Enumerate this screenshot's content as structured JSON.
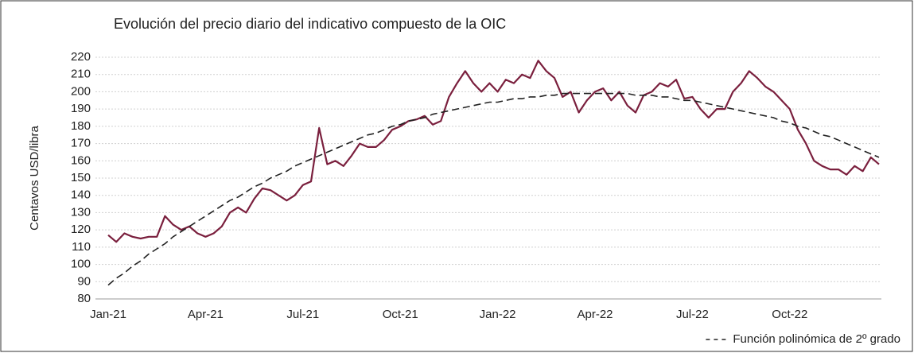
{
  "chart_data": {
    "type": "line",
    "title": "Evolución del precio diario del indicativo compuesto de la OIC",
    "y_label": "Centavos USD/libra",
    "categories": [
      "Jan-21",
      null,
      null,
      null,
      null,
      null,
      null,
      null,
      null,
      null,
      null,
      null,
      "Apr-21",
      null,
      null,
      null,
      null,
      null,
      null,
      null,
      null,
      null,
      null,
      null,
      "Jul-21",
      null,
      null,
      null,
      null,
      null,
      null,
      null,
      null,
      null,
      null,
      null,
      "Oct-21",
      null,
      null,
      null,
      null,
      null,
      null,
      null,
      null,
      null,
      null,
      null,
      "Jan-22",
      null,
      null,
      null,
      null,
      null,
      null,
      null,
      null,
      null,
      null,
      null,
      "Apr-22",
      null,
      null,
      null,
      null,
      null,
      null,
      null,
      null,
      null,
      null,
      null,
      "Jul-22",
      null,
      null,
      null,
      null,
      null,
      null,
      null,
      null,
      null,
      null,
      null,
      "Oct-22",
      null,
      null,
      null,
      null,
      null,
      null,
      null,
      null,
      null,
      null,
      null
    ],
    "series": [
      {
        "color": "#7a1f3d",
        "values": [
          117,
          113,
          118,
          116,
          115,
          116,
          116,
          128,
          123,
          120,
          122,
          118,
          116,
          118,
          122,
          130,
          133,
          130,
          138,
          144,
          143,
          140,
          137,
          140,
          146,
          148,
          179,
          158,
          160,
          157,
          163,
          170,
          168,
          168,
          172,
          178,
          180,
          183,
          184,
          186,
          181,
          183,
          197,
          205,
          212,
          205,
          200,
          205,
          200,
          207,
          205,
          210,
          208,
          218,
          212,
          208,
          197,
          200,
          188,
          195,
          200,
          202,
          195,
          200,
          192,
          188,
          198,
          200,
          205,
          203,
          207,
          196,
          197,
          190,
          185,
          190,
          190,
          200,
          205,
          212,
          208,
          203,
          200,
          195,
          190,
          178,
          170,
          160,
          157,
          155,
          155,
          152,
          157,
          154,
          162,
          158
        ]
      },
      {
        "name": "Función polinómica de 2º grado",
        "color": "#222222",
        "dashed": true,
        "values": [
          88,
          92,
          95,
          99,
          102,
          106,
          109,
          112,
          116,
          119,
          122,
          125,
          128,
          131,
          134,
          137,
          139,
          142,
          145,
          147,
          150,
          152,
          154,
          157,
          159,
          161,
          163,
          165,
          167,
          169,
          171,
          173,
          175,
          176,
          178,
          180,
          181,
          183,
          184,
          185,
          187,
          188,
          189,
          190,
          191,
          192,
          193,
          194,
          194,
          195,
          196,
          196,
          197,
          197,
          198,
          198,
          199,
          199,
          199,
          199,
          199,
          199,
          199,
          199,
          199,
          198,
          198,
          198,
          197,
          197,
          196,
          195,
          195,
          194,
          193,
          192,
          191,
          190,
          189,
          188,
          187,
          186,
          185,
          183,
          182,
          180,
          179,
          177,
          175,
          174,
          172,
          170,
          168,
          166,
          164,
          162
        ]
      }
    ],
    "ylim": [
      80,
      220
    ],
    "yticks": [
      80,
      90,
      100,
      110,
      120,
      130,
      140,
      150,
      160,
      170,
      180,
      190,
      200,
      210,
      220
    ],
    "grid": true,
    "legend": "bottom-right"
  }
}
